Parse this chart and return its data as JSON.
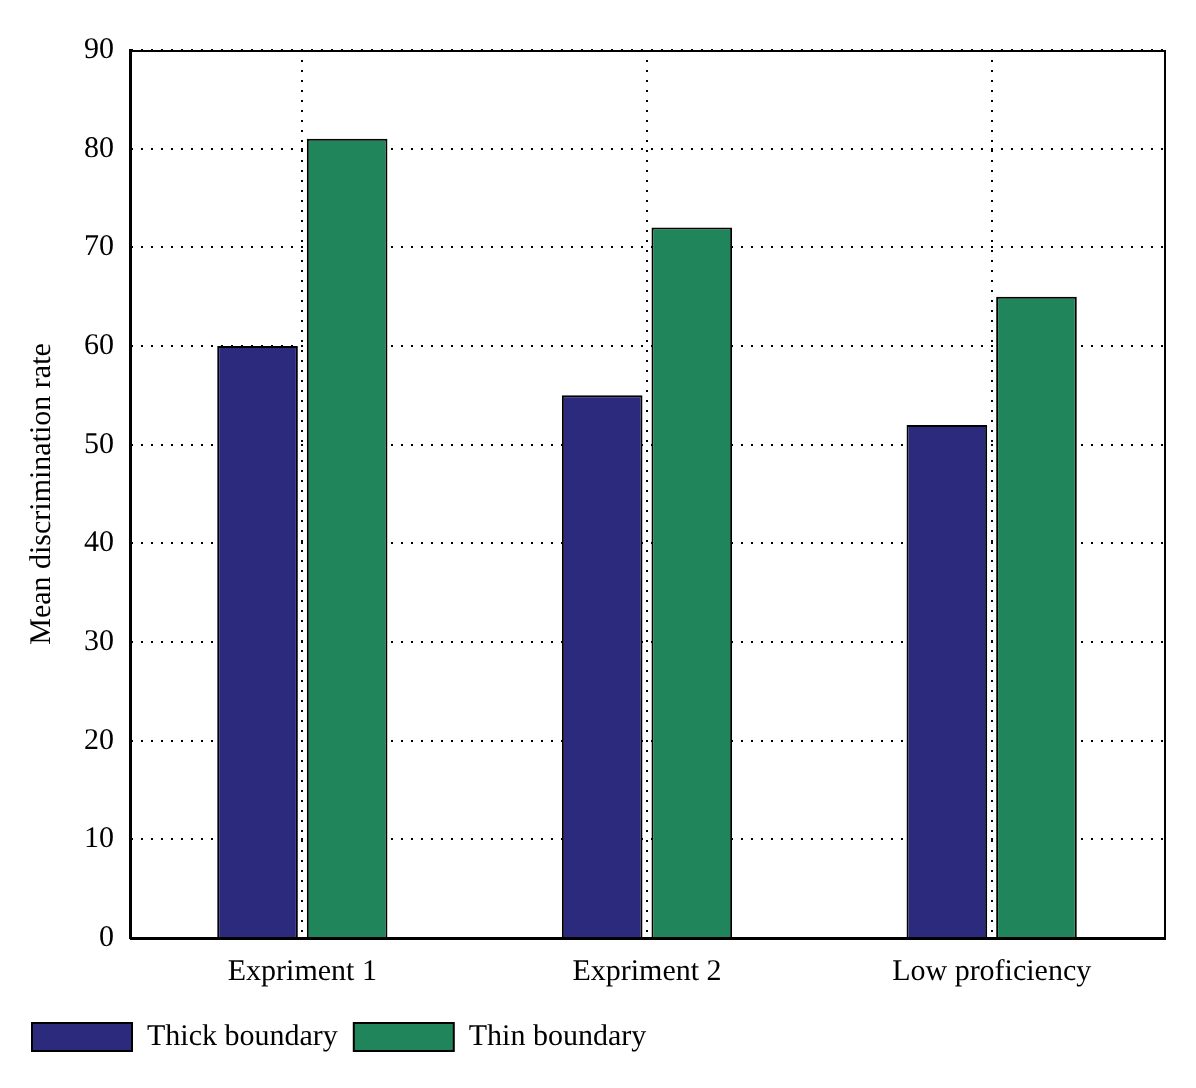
{
  "chart_data": {
    "type": "bar",
    "ylabel": "Mean discrimination rate",
    "categories": [
      "Expriment 1",
      "Expriment 2",
      "Low proficiency"
    ],
    "series": [
      {
        "name": "Thick boundary",
        "color": "#2b2a7c",
        "values": [
          60,
          55,
          52
        ]
      },
      {
        "name": "Thin boundary",
        "color": "#20855a",
        "values": [
          81,
          72,
          65
        ]
      }
    ],
    "ylim": [
      0,
      90
    ],
    "yticks": [
      0,
      10,
      20,
      30,
      40,
      50,
      60,
      70,
      80,
      90
    ],
    "grid": true,
    "line_style": "dotted",
    "legend": "bottom left"
  }
}
